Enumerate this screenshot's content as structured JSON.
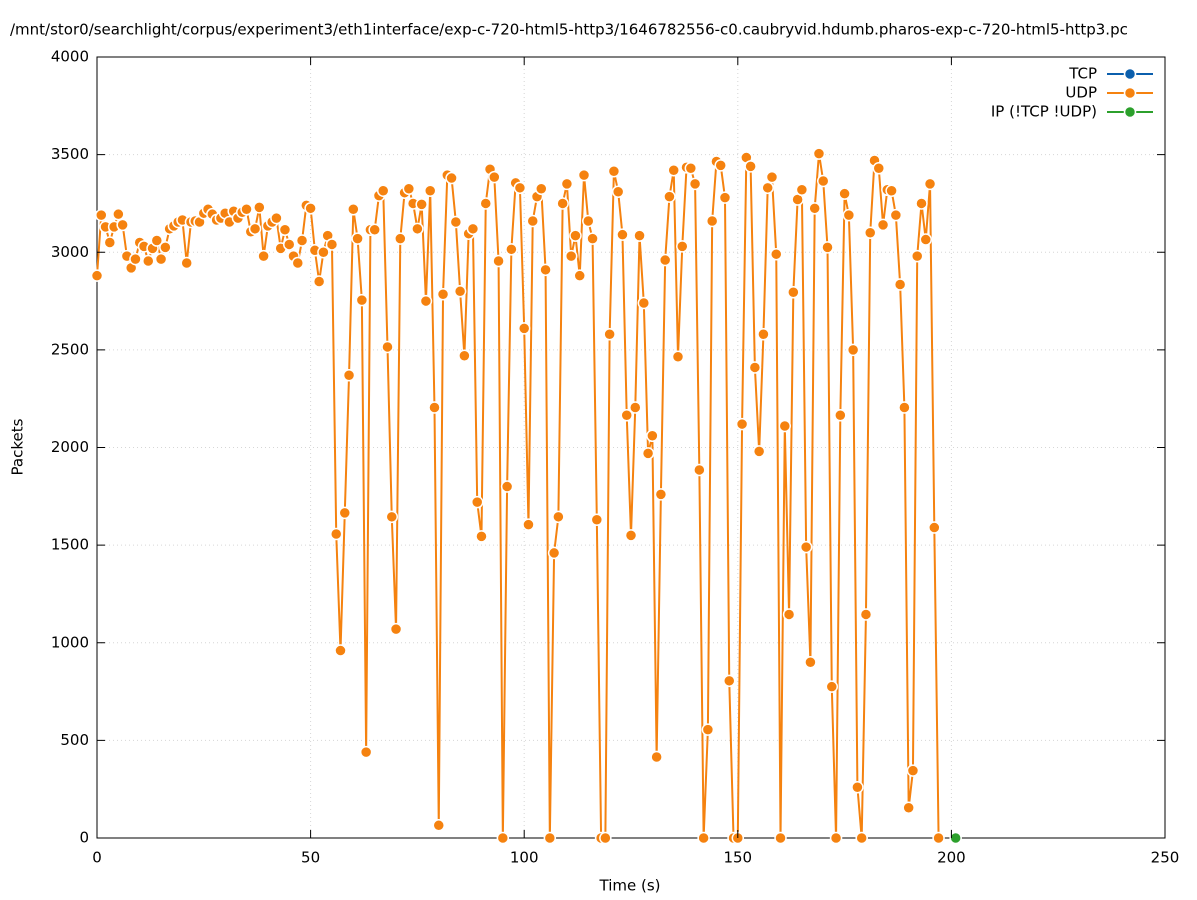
{
  "chart_data": {
    "type": "line",
    "title": "/mnt/stor0/searchlight/corpus/experiment3/eth1interface/exp-c-720-html5-http3/1646782556-c0.caubryvid.hdumb.pharos-exp-c-720-html5-http3.pc",
    "x_label": "Time (s)",
    "y_label": "Packets",
    "xlim": [
      0,
      250
    ],
    "xticks": [
      0,
      50,
      100,
      150,
      200,
      250
    ],
    "ylim": [
      0,
      4000
    ],
    "yticks": [
      0,
      500,
      1000,
      1500,
      2000,
      2500,
      3000,
      3500,
      4000
    ],
    "grid": true,
    "legend": "top-right",
    "series": [
      {
        "name": "TCP",
        "color": "#0b5fad",
        "x": [],
        "values": []
      },
      {
        "name": "UDP",
        "color": "#f5820f",
        "x": [
          0,
          1,
          2,
          3,
          4,
          5,
          6,
          7,
          8,
          9,
          10,
          11,
          12,
          13,
          14,
          15,
          16,
          17,
          18,
          19,
          20,
          21,
          22,
          23,
          24,
          25,
          26,
          27,
          28,
          29,
          30,
          31,
          32,
          33,
          34,
          35,
          36,
          37,
          38,
          39,
          40,
          41,
          42,
          43,
          44,
          45,
          46,
          47,
          48,
          49,
          50,
          51,
          52,
          53,
          54,
          55,
          56,
          57,
          58,
          59,
          60,
          61,
          62,
          63,
          64,
          65,
          66,
          67,
          68,
          69,
          70,
          71,
          72,
          73,
          74,
          75,
          76,
          77,
          78,
          79,
          80,
          81,
          82,
          83,
          84,
          85,
          86,
          87,
          88,
          89,
          90,
          91,
          92,
          93,
          94,
          95,
          96,
          97,
          98,
          99,
          100,
          101,
          102,
          103,
          104,
          105,
          106,
          107,
          108,
          109,
          110,
          111,
          112,
          113,
          114,
          115,
          116,
          117,
          118,
          119,
          120,
          121,
          122,
          123,
          124,
          125,
          126,
          127,
          128,
          129,
          130,
          131,
          132,
          133,
          134,
          135,
          136,
          137,
          138,
          139,
          140,
          141,
          142,
          143,
          144,
          145,
          146,
          147,
          148,
          149,
          150,
          151,
          152,
          153,
          154,
          155,
          156,
          157,
          158,
          159,
          160,
          161,
          162,
          163,
          164,
          165,
          166,
          167,
          168,
          169,
          170,
          171,
          172,
          173,
          174,
          175,
          176,
          177,
          178,
          179,
          180,
          181,
          182,
          183,
          184,
          185,
          186,
          187,
          188,
          189,
          190,
          191,
          192,
          193,
          194,
          195,
          196,
          197
        ],
        "values": [
          2880,
          3190,
          3130,
          3050,
          3130,
          3195,
          3140,
          2980,
          2920,
          2965,
          3050,
          3030,
          2955,
          3020,
          3060,
          2965,
          3025,
          3120,
          3135,
          3155,
          3165,
          2945,
          3155,
          3160,
          3155,
          3200,
          3220,
          3195,
          3165,
          3175,
          3200,
          3155,
          3210,
          3175,
          3205,
          3220,
          3105,
          3120,
          3230,
          2980,
          3135,
          3155,
          3175,
          3020,
          3115,
          3040,
          2980,
          2945,
          3060,
          3240,
          3225,
          3010,
          2850,
          3000,
          3085,
          3040,
          1557,
          960,
          1665,
          2370,
          3220,
          3070,
          2755,
          440,
          3115,
          3115,
          3290,
          3315,
          2515,
          1645,
          1070,
          3070,
          3305,
          3325,
          3250,
          3120,
          3245,
          2750,
          3315,
          2205,
          65,
          2785,
          3395,
          3380,
          3155,
          2800,
          2470,
          3095,
          3120,
          1720,
          1545,
          3250,
          3425,
          3385,
          2955,
          0,
          1800,
          3015,
          3355,
          3330,
          2610,
          1605,
          3160,
          3285,
          3325,
          2910,
          0,
          1460,
          1645,
          3250,
          3350,
          2980,
          3085,
          2880,
          3395,
          3160,
          3070,
          1630,
          0,
          0,
          2580,
          3415,
          3310,
          3090,
          2165,
          1550,
          2205,
          3085,
          2740,
          1970,
          2060,
          415,
          1760,
          2960,
          3285,
          3420,
          2465,
          3030,
          3435,
          3430,
          3350,
          1885,
          0,
          555,
          3160,
          3465,
          3445,
          3280,
          805,
          0,
          0,
          2120,
          3485,
          3440,
          2410,
          1980,
          2580,
          3330,
          3385,
          2990,
          0,
          2110,
          1145,
          2795,
          3270,
          3320,
          1490,
          900,
          3225,
          3505,
          3365,
          3025,
          775,
          0,
          2165,
          3300,
          3190,
          2500,
          260,
          0,
          1145,
          3100,
          3470,
          3430,
          3140,
          3320,
          3315,
          3190,
          2835,
          2205,
          155,
          345,
          2980,
          3250,
          3065,
          3350,
          1590,
          0
        ]
      },
      {
        "name": "IP (!TCP  !UDP)",
        "color": "#2ca02c",
        "x": [
          201
        ],
        "values": [
          0
        ]
      }
    ]
  }
}
